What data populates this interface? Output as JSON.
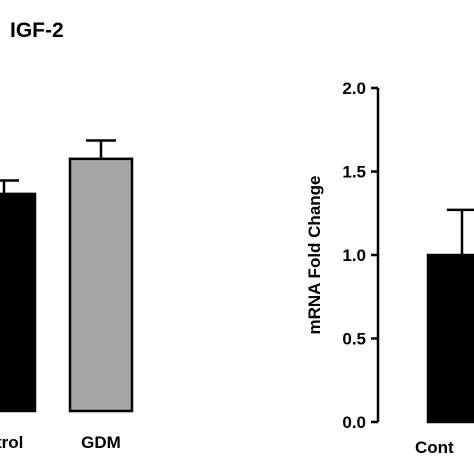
{
  "chart_data": [
    {
      "type": "bar",
      "title": "IGF-2",
      "categories": [
        "trol",
        "GDM"
      ],
      "values": [
        1.3,
        1.51
      ],
      "errors": [
        0.08,
        0.11
      ],
      "colors": [
        "#000000",
        "#a6a6a6"
      ]
    },
    {
      "type": "bar",
      "ylabel": "mRNA Fold Change",
      "categories": [
        "Cont"
      ],
      "values": [
        1.0
      ],
      "errors": [
        0.27
      ],
      "colors": [
        "#000000"
      ],
      "ylim": [
        0,
        2.0
      ],
      "yticks": [
        {
          "value": 0,
          "label": "0.0"
        },
        {
          "value": 0.5,
          "label": "0.5"
        },
        {
          "value": 1.0,
          "label": "1.0"
        },
        {
          "value": 1.5,
          "label": "1.5"
        },
        {
          "value": 2.0,
          "label": "2.0"
        }
      ]
    }
  ]
}
